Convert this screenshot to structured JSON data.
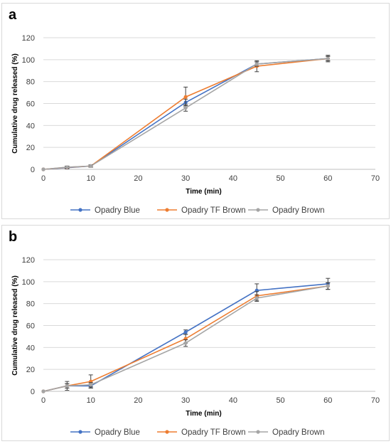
{
  "chart_data": [
    {
      "type": "line",
      "panel_label": "a",
      "xlabel": "Time (min)",
      "ylabel": "Cumulative drug released (%)",
      "xlim": [
        0,
        70
      ],
      "ylim": [
        0,
        120
      ],
      "xticks": [
        0,
        10,
        20,
        30,
        40,
        50,
        60,
        70
      ],
      "yticks": [
        0,
        20,
        40,
        60,
        80,
        100,
        120
      ],
      "grid": "horizontal",
      "legend": "bottom",
      "x": [
        0,
        5,
        10,
        30,
        45,
        60
      ],
      "series": [
        {
          "name": "Opadry Blue",
          "color": "#4472C4",
          "values": [
            0,
            1.5,
            3,
            61,
            96,
            101
          ],
          "errors": [
            0,
            1,
            1,
            3,
            2,
            2
          ]
        },
        {
          "name": "Opadry TF Brown",
          "color": "#ED7D31",
          "values": [
            0,
            1.8,
            3,
            66,
            94,
            101
          ],
          "errors": [
            0,
            1,
            1,
            9,
            5,
            2
          ]
        },
        {
          "name": "Opadry Brown",
          "color": "#A5A5A5",
          "values": [
            0,
            2,
            3,
            56,
            96,
            101
          ],
          "errors": [
            0,
            1,
            1,
            3,
            2,
            3
          ]
        }
      ]
    },
    {
      "type": "line",
      "panel_label": "b",
      "xlabel": "Time (min)",
      "ylabel": "Cumulative drug released (%)",
      "xlim": [
        0,
        70
      ],
      "ylim": [
        0,
        120
      ],
      "xticks": [
        0,
        10,
        20,
        30,
        40,
        50,
        60,
        70
      ],
      "yticks": [
        0,
        20,
        40,
        60,
        80,
        100,
        120
      ],
      "grid": "horizontal",
      "legend": "bottom",
      "x": [
        0,
        5,
        10,
        30,
        45,
        60
      ],
      "series": [
        {
          "name": "Opadry Blue",
          "color": "#4472C4",
          "values": [
            0,
            5,
            5,
            54,
            92,
            98
          ],
          "errors": [
            0,
            2,
            2,
            2,
            6,
            5
          ]
        },
        {
          "name": "Opadry TF Brown",
          "color": "#ED7D31",
          "values": [
            0,
            5,
            9,
            48,
            87,
            96
          ],
          "errors": [
            0,
            4,
            6,
            4,
            4,
            3
          ]
        },
        {
          "name": "Opadry Brown",
          "color": "#A5A5A5",
          "values": [
            0,
            5,
            6,
            44,
            85,
            96
          ],
          "errors": [
            0,
            2,
            2,
            3,
            3,
            3
          ]
        }
      ]
    }
  ]
}
